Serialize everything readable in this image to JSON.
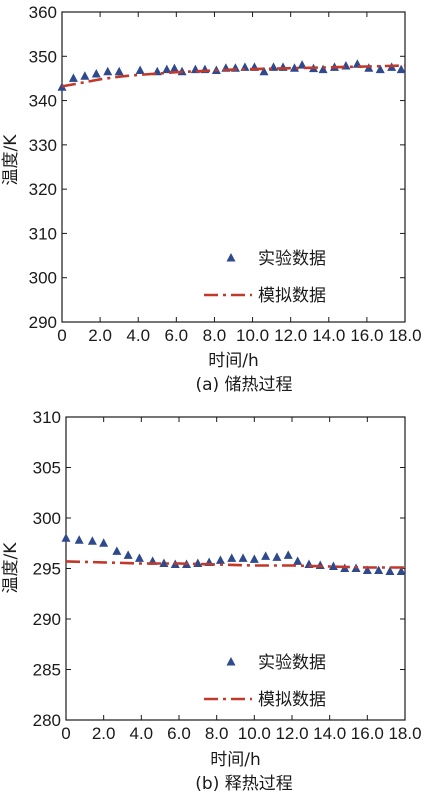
{
  "chart_data": [
    {
      "type": "scatter",
      "caption": "(a) 储热过程",
      "xlabel": "时间/h",
      "ylabel": "温度/K",
      "xlim": [
        0,
        18
      ],
      "ylim": [
        290,
        360
      ],
      "xticks": [
        "0",
        "2.0",
        "4.0",
        "6.0",
        "8.0",
        "10.0",
        "12.0",
        "14.0",
        "16.0",
        "18.0"
      ],
      "yticks": [
        "290",
        "300",
        "310",
        "320",
        "330",
        "340",
        "350",
        "360"
      ],
      "legend_position": "lower-right",
      "series": [
        {
          "name": "实验数据",
          "marker": "triangle",
          "color": "#2e4a8c",
          "x": [
            0,
            0.6,
            1.2,
            1.8,
            2.4,
            3.0,
            4.1,
            5.0,
            5.5,
            5.9,
            6.3,
            7.0,
            7.5,
            8.1,
            8.6,
            9.1,
            9.6,
            10.1,
            10.6,
            11.1,
            11.6,
            12.2,
            12.6,
            13.2,
            13.7,
            14.3,
            14.9,
            15.5,
            16.1,
            16.7,
            17.3,
            17.8
          ],
          "y": [
            343,
            345,
            345.5,
            346,
            346.5,
            346.5,
            346.8,
            346.5,
            347,
            347.2,
            346.5,
            347,
            347,
            346.8,
            347.3,
            347.3,
            347.5,
            347.5,
            346.5,
            347.5,
            347.5,
            347.3,
            348,
            347.2,
            347,
            347.5,
            347.8,
            348.2,
            347.3,
            347,
            347.5,
            347
          ]
        },
        {
          "name": "模拟数据",
          "line_style": "dash-dot",
          "color": "#c0392b",
          "x": [
            0,
            1,
            2,
            3,
            4,
            5,
            6,
            7,
            8,
            9,
            10,
            11,
            12,
            13,
            14,
            15,
            16,
            17,
            18
          ],
          "y": [
            343.2,
            344.0,
            344.8,
            345.4,
            345.8,
            346.1,
            346.4,
            346.6,
            346.8,
            347.0,
            347.1,
            347.2,
            347.3,
            347.4,
            347.5,
            347.6,
            347.7,
            347.8,
            347.9
          ]
        }
      ]
    },
    {
      "type": "scatter",
      "caption": "(b) 释热过程",
      "xlabel": "时间/h",
      "ylabel": "温度/K",
      "xlim": [
        0,
        18
      ],
      "ylim": [
        280,
        310
      ],
      "xticks": [
        "0",
        "2.0",
        "4.0",
        "6.0",
        "8.0",
        "10.0",
        "12.0",
        "14.0",
        "16.0",
        "18.0"
      ],
      "yticks": [
        "280",
        "285",
        "290",
        "295",
        "300",
        "305",
        "310"
      ],
      "legend_position": "lower-right",
      "series": [
        {
          "name": "实验数据",
          "marker": "triangle",
          "color": "#2e4a8c",
          "x": [
            0,
            0.7,
            1.4,
            2.0,
            2.7,
            3.3,
            3.9,
            4.6,
            5.2,
            5.8,
            6.4,
            7.0,
            7.6,
            8.2,
            8.8,
            9.4,
            10.0,
            10.6,
            11.2,
            11.8,
            12.3,
            12.9,
            13.5,
            14.2,
            14.8,
            15.4,
            16.0,
            16.6,
            17.2,
            17.8
          ],
          "y": [
            298,
            297.8,
            297.7,
            297.5,
            296.7,
            296.3,
            296.0,
            295.7,
            295.5,
            295.4,
            295.4,
            295.5,
            295.6,
            295.8,
            296.0,
            296.0,
            295.9,
            296.2,
            296.1,
            296.3,
            295.7,
            295.4,
            295.3,
            295.2,
            295.0,
            295.0,
            294.8,
            294.8,
            294.7,
            294.7
          ]
        },
        {
          "name": "模拟数据",
          "line_style": "dash-dot",
          "color": "#c0392b",
          "x": [
            0,
            2,
            4,
            6,
            8,
            10,
            12,
            14,
            16,
            18
          ],
          "y": [
            295.7,
            295.6,
            295.5,
            295.5,
            295.4,
            295.3,
            295.3,
            295.2,
            295.1,
            295.1
          ]
        }
      ]
    }
  ]
}
